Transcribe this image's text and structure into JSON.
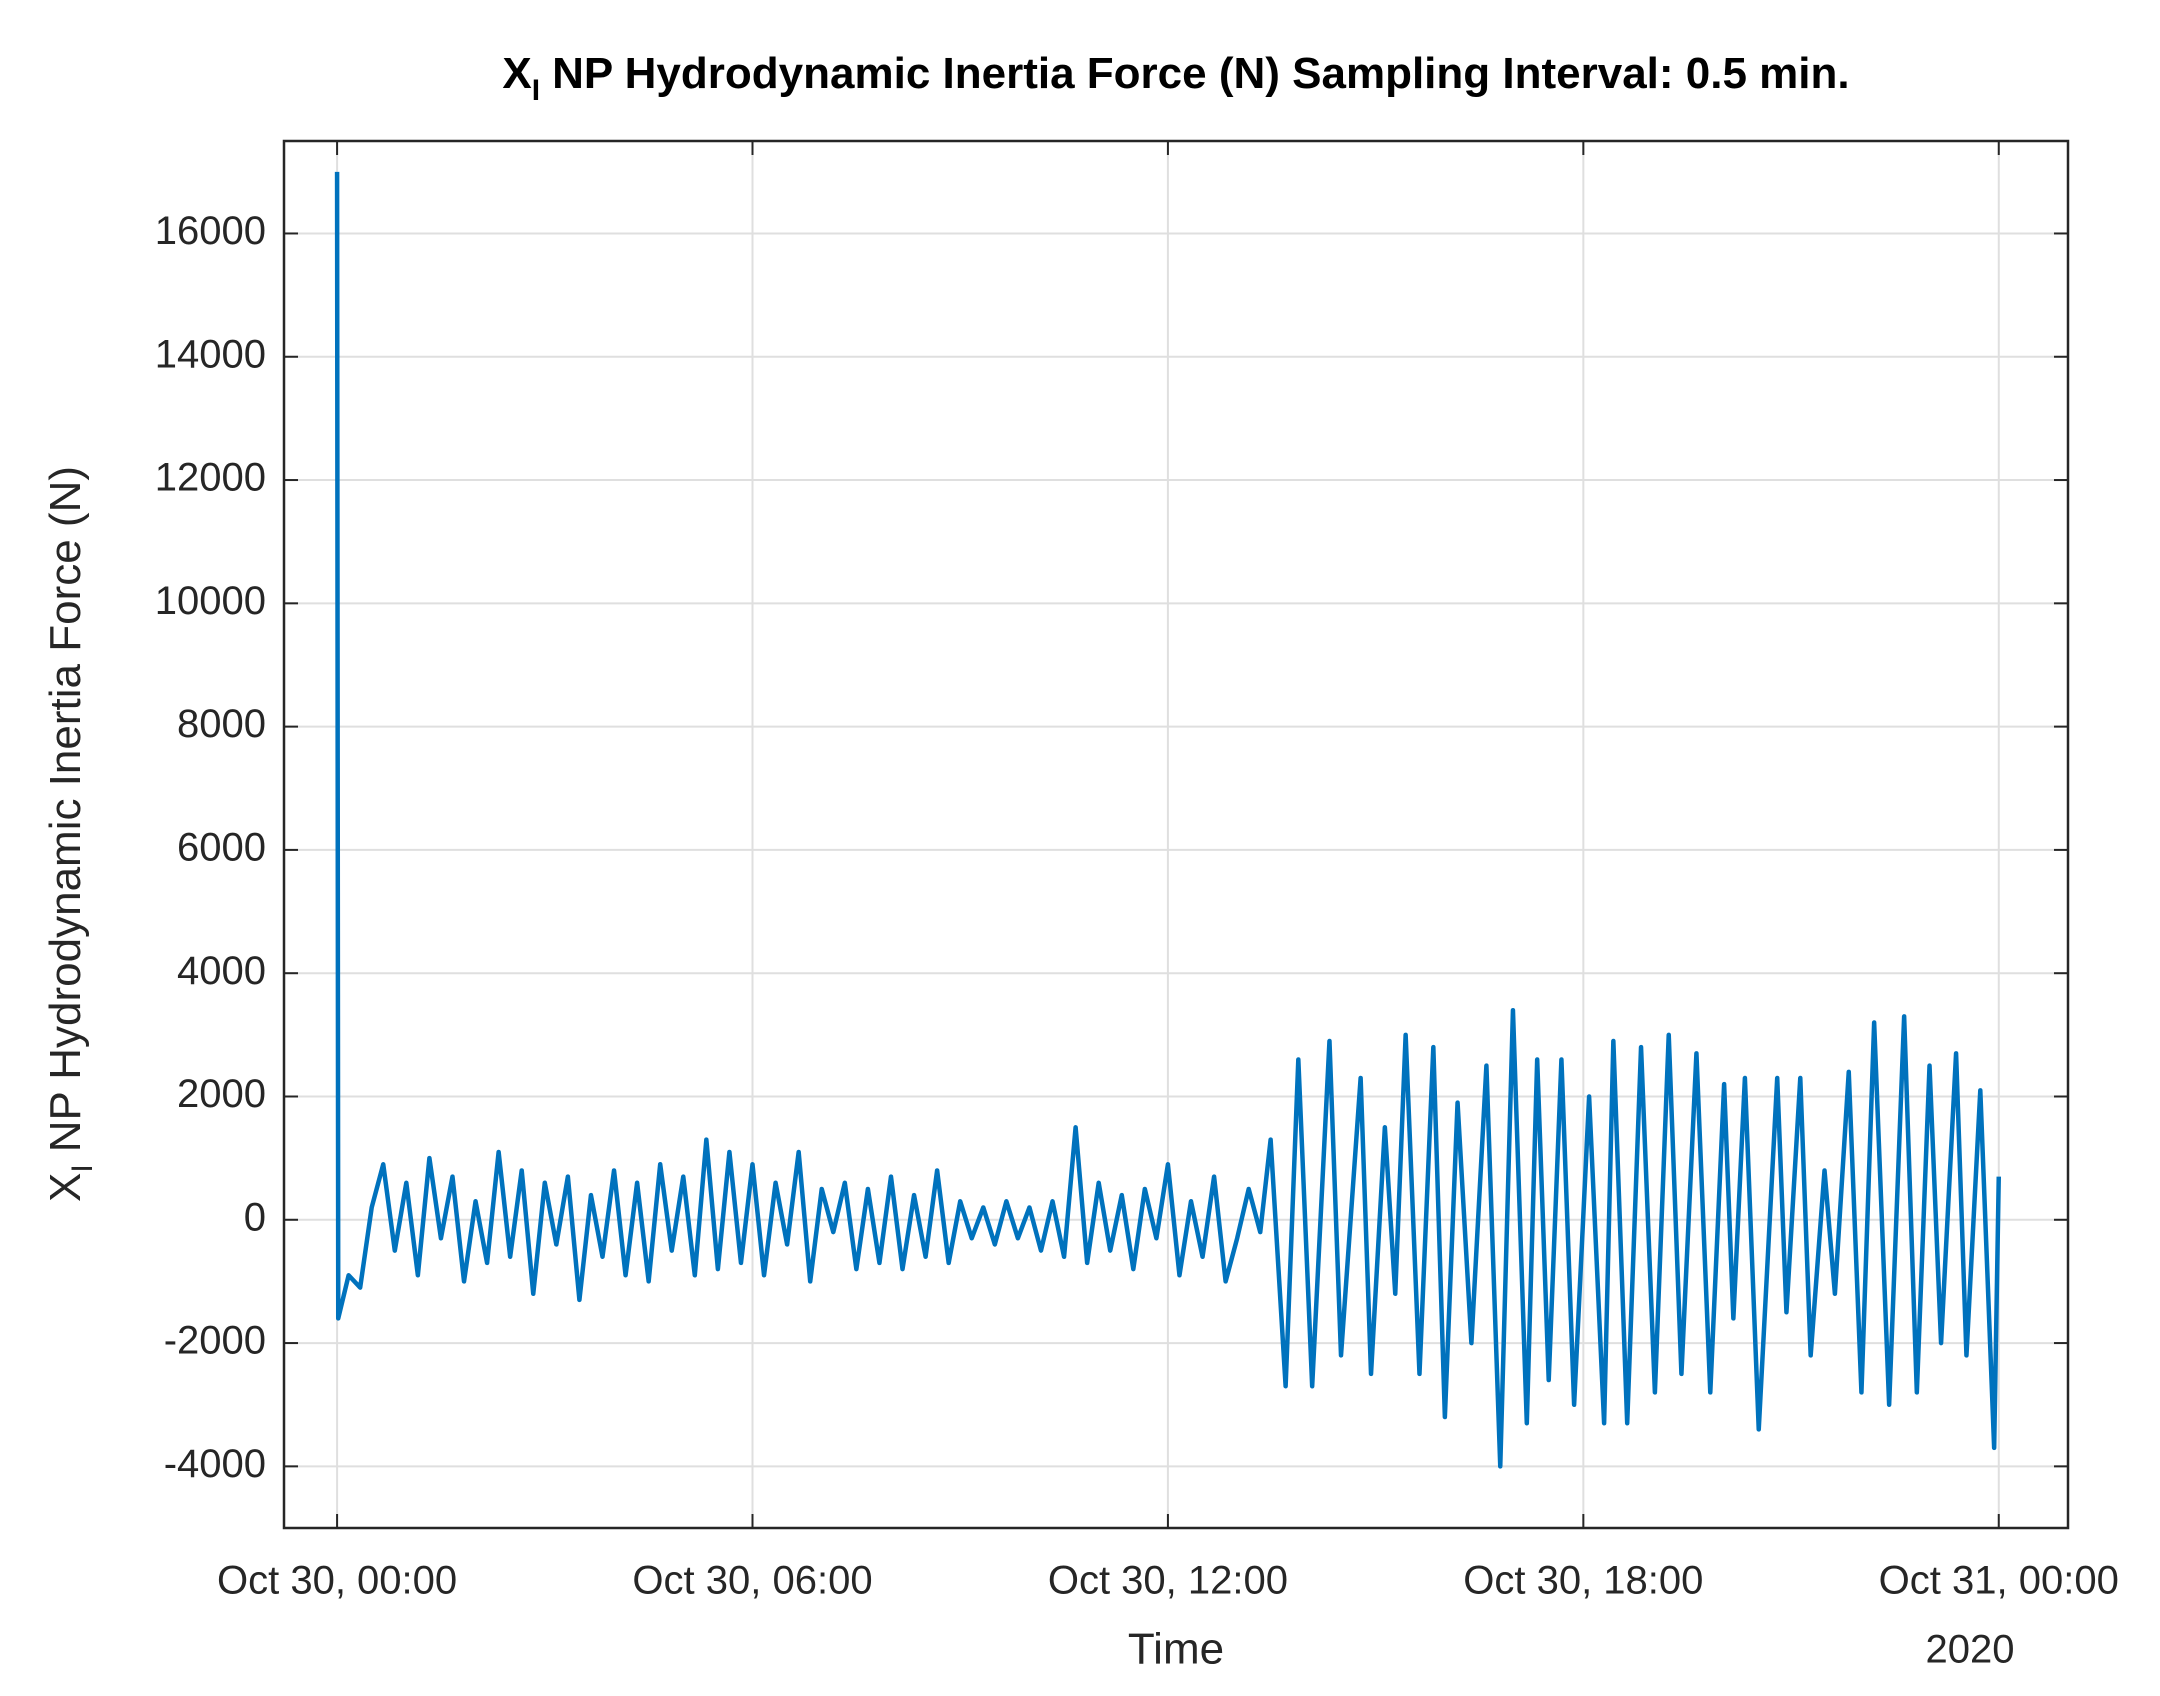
{
  "chart_data": {
    "type": "line",
    "title": {
      "symbol": "X",
      "subscript": "I",
      "text": "NP Hydrodynamic Inertia Force (N) Sampling Interval: 0.5 min."
    },
    "ylabel": {
      "symbol": "X",
      "subscript": "I",
      "text": "NP Hydrodynamic Inertia Force (N)"
    },
    "xlabel": "Time",
    "x_secondary_label": "2020",
    "color": "#0072bd",
    "grid": true,
    "xlim": [
      "2020-10-29T23:14",
      "2020-10-31T01:00"
    ],
    "xticks": [
      {
        "value": "2020-10-30T00:00",
        "label": "Oct 30, 00:00"
      },
      {
        "value": "2020-10-30T06:00",
        "label": "Oct 30, 06:00"
      },
      {
        "value": "2020-10-30T12:00",
        "label": "Oct 30, 12:00"
      },
      {
        "value": "2020-10-30T18:00",
        "label": "Oct 30, 18:00"
      },
      {
        "value": "2020-10-31T00:00",
        "label": "Oct 31, 00:00"
      }
    ],
    "ylim": [
      -5000,
      17500
    ],
    "yticks": [
      -4000,
      -2000,
      0,
      2000,
      4000,
      6000,
      8000,
      10000,
      12000,
      14000,
      16000
    ],
    "x": [
      "2020-10-30T00:00",
      "2020-10-30T00:01",
      "2020-10-30T00:10",
      "2020-10-30T00:20",
      "2020-10-30T00:30",
      "2020-10-30T00:40",
      "2020-10-30T00:50",
      "2020-10-30T01:00",
      "2020-10-30T01:10",
      "2020-10-30T01:20",
      "2020-10-30T01:30",
      "2020-10-30T01:40",
      "2020-10-30T01:50",
      "2020-10-30T02:00",
      "2020-10-30T02:10",
      "2020-10-30T02:20",
      "2020-10-30T02:30",
      "2020-10-30T02:40",
      "2020-10-30T02:50",
      "2020-10-30T03:00",
      "2020-10-30T03:10",
      "2020-10-30T03:20",
      "2020-10-30T03:30",
      "2020-10-30T03:40",
      "2020-10-30T03:50",
      "2020-10-30T04:00",
      "2020-10-30T04:10",
      "2020-10-30T04:20",
      "2020-10-30T04:30",
      "2020-10-30T04:40",
      "2020-10-30T04:50",
      "2020-10-30T05:00",
      "2020-10-30T05:10",
      "2020-10-30T05:20",
      "2020-10-30T05:30",
      "2020-10-30T05:40",
      "2020-10-30T05:50",
      "2020-10-30T06:00",
      "2020-10-30T06:10",
      "2020-10-30T06:20",
      "2020-10-30T06:30",
      "2020-10-30T06:40",
      "2020-10-30T06:50",
      "2020-10-30T07:00",
      "2020-10-30T07:10",
      "2020-10-30T07:20",
      "2020-10-30T07:30",
      "2020-10-30T07:40",
      "2020-10-30T07:50",
      "2020-10-30T08:00",
      "2020-10-30T08:10",
      "2020-10-30T08:20",
      "2020-10-30T08:30",
      "2020-10-30T08:40",
      "2020-10-30T08:50",
      "2020-10-30T09:00",
      "2020-10-30T09:10",
      "2020-10-30T09:20",
      "2020-10-30T09:30",
      "2020-10-30T09:40",
      "2020-10-30T09:50",
      "2020-10-30T10:00",
      "2020-10-30T10:10",
      "2020-10-30T10:20",
      "2020-10-30T10:30",
      "2020-10-30T10:40",
      "2020-10-30T10:50",
      "2020-10-30T11:00",
      "2020-10-30T11:10",
      "2020-10-30T11:20",
      "2020-10-30T11:30",
      "2020-10-30T11:40",
      "2020-10-30T11:50",
      "2020-10-30T12:00",
      "2020-10-30T12:10",
      "2020-10-30T12:20",
      "2020-10-30T12:30",
      "2020-10-30T12:40",
      "2020-10-30T12:50",
      "2020-10-30T13:00",
      "2020-10-30T13:10",
      "2020-10-30T13:20",
      "2020-10-30T13:29",
      "2020-10-30T13:42",
      "2020-10-30T13:53",
      "2020-10-30T14:05",
      "2020-10-30T14:20",
      "2020-10-30T14:30",
      "2020-10-30T14:47",
      "2020-10-30T14:56",
      "2020-10-30T15:08",
      "2020-10-30T15:17",
      "2020-10-30T15:26",
      "2020-10-30T15:38",
      "2020-10-30T15:50",
      "2020-10-30T16:00",
      "2020-10-30T16:11",
      "2020-10-30T16:23",
      "2020-10-30T16:36",
      "2020-10-30T16:48",
      "2020-10-30T16:59",
      "2020-10-30T17:11",
      "2020-10-30T17:20",
      "2020-10-30T17:30",
      "2020-10-30T17:41",
      "2020-10-30T17:52",
      "2020-10-30T18:05",
      "2020-10-30T18:18",
      "2020-10-30T18:26",
      "2020-10-30T18:38",
      "2020-10-30T18:50",
      "2020-10-30T19:02",
      "2020-10-30T19:14",
      "2020-10-30T19:25",
      "2020-10-30T19:38",
      "2020-10-30T19:50",
      "2020-10-30T20:02",
      "2020-10-30T20:10",
      "2020-10-30T20:20",
      "2020-10-30T20:32",
      "2020-10-30T20:48",
      "2020-10-30T20:56",
      "2020-10-30T21:08",
      "2020-10-30T21:17",
      "2020-10-30T21:29",
      "2020-10-30T21:38",
      "2020-10-30T21:50",
      "2020-10-30T22:01",
      "2020-10-30T22:12",
      "2020-10-30T22:25",
      "2020-10-30T22:38",
      "2020-10-30T22:49",
      "2020-10-30T23:00",
      "2020-10-30T23:10",
      "2020-10-30T23:23",
      "2020-10-30T23:32",
      "2020-10-30T23:44",
      "2020-10-30T23:56",
      "2020-10-31T00:00"
    ],
    "values": [
      17000,
      -1600,
      -900,
      -1100,
      200,
      900,
      -500,
      600,
      -900,
      1000,
      -300,
      700,
      -1000,
      300,
      -700,
      1100,
      -600,
      800,
      -1200,
      600,
      -400,
      700,
      -1300,
      400,
      -600,
      800,
      -900,
      600,
      -1000,
      900,
      -500,
      700,
      -900,
      1300,
      -800,
      1100,
      -700,
      900,
      -900,
      600,
      -400,
      1100,
      -1000,
      500,
      -200,
      600,
      -800,
      500,
      -700,
      700,
      -800,
      400,
      -600,
      800,
      -700,
      300,
      -300,
      200,
      -400,
      300,
      -300,
      200,
      -500,
      300,
      -600,
      1500,
      -700,
      600,
      -500,
      400,
      -800,
      500,
      -300,
      900,
      -900,
      300,
      -600,
      700,
      -1000,
      -300,
      500,
      -200,
      1300,
      -2700,
      2600,
      -2700,
      2900,
      -2200,
      2300,
      -2500,
      1500,
      -1200,
      3000,
      -2500,
      2800,
      -3200,
      1900,
      -2000,
      2500,
      -4000,
      3400,
      -3300,
      2600,
      -2600,
      2600,
      -3000,
      2000,
      -3300,
      2900,
      -3300,
      2800,
      -2800,
      3000,
      -2500,
      2700,
      -2800,
      2200,
      -1600,
      2300,
      -3400,
      2300,
      -1500,
      2300,
      -2200,
      800,
      -1200,
      2400,
      -2800,
      3200,
      -3000,
      3300,
      -2800,
      2500,
      -2000,
      2700,
      -2200,
      2100,
      -3700,
      700
    ]
  }
}
